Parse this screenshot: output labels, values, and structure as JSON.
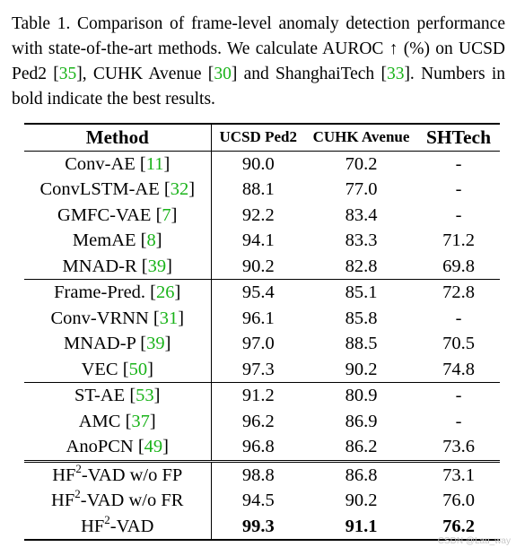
{
  "caption": {
    "prefix": "Table 1. Comparison of frame-level anomaly detection performance with state-of-the-art methods. We calculate AUROC ↑ (%) on UCSD Ped2 [",
    "ref1": "35",
    "mid1": "], CUHK Avenue [",
    "ref2": "30",
    "mid2": "] and ShanghaiTech [",
    "ref3": "33",
    "suffix": "]. Numbers in bold indicate the best results."
  },
  "headers": {
    "method": "Method",
    "ped2": "UCSD Ped2",
    "avenue": "CUHK Avenue",
    "shtech": "SHTech"
  },
  "rows": [
    {
      "name": "Conv-AE [",
      "ref": "11",
      "close": "]",
      "ped2": "90.0",
      "avenue": "70.2",
      "shtech": "-"
    },
    {
      "name": "ConvLSTM-AE [",
      "ref": "32",
      "close": "]",
      "ped2": "88.1",
      "avenue": "77.0",
      "shtech": "-"
    },
    {
      "name": "GMFC-VAE [",
      "ref": "7",
      "close": "]",
      "ped2": "92.2",
      "avenue": "83.4",
      "shtech": "-"
    },
    {
      "name": "MemAE [",
      "ref": "8",
      "close": "]",
      "ped2": "94.1",
      "avenue": "83.3",
      "shtech": "71.2"
    },
    {
      "name": "MNAD-R [",
      "ref": "39",
      "close": "]",
      "ped2": "90.2",
      "avenue": "82.8",
      "shtech": "69.8"
    },
    {
      "name": "Frame-Pred. [",
      "ref": "26",
      "close": "]",
      "ped2": "95.4",
      "avenue": "85.1",
      "shtech": "72.8"
    },
    {
      "name": "Conv-VRNN [",
      "ref": "31",
      "close": "]",
      "ped2": "96.1",
      "avenue": "85.8",
      "shtech": "-"
    },
    {
      "name": "MNAD-P [",
      "ref": "39",
      "close": "]",
      "ped2": "97.0",
      "avenue": "88.5",
      "shtech": "70.5"
    },
    {
      "name": "VEC [",
      "ref": "50",
      "close": "]",
      "ped2": "97.3",
      "avenue": "90.2",
      "shtech": "74.8"
    },
    {
      "name": "ST-AE [",
      "ref": "53",
      "close": "]",
      "ped2": "91.2",
      "avenue": "80.9",
      "shtech": "-"
    },
    {
      "name": "AMC [",
      "ref": "37",
      "close": "]",
      "ped2": "96.2",
      "avenue": "86.9",
      "shtech": "-"
    },
    {
      "name": "AnoPCN [",
      "ref": "49",
      "close": "]",
      "ped2": "96.8",
      "avenue": "86.2",
      "shtech": "73.6"
    },
    {
      "pre": "HF",
      "sup": "2",
      "post": "-VAD w/o FP",
      "ped2": "98.8",
      "avenue": "86.8",
      "shtech": "73.1"
    },
    {
      "pre": "HF",
      "sup": "2",
      "post": "-VAD w/o FR",
      "ped2": "94.5",
      "avenue": "90.2",
      "shtech": "76.0"
    },
    {
      "pre": "HF",
      "sup": "2",
      "post": "-VAD",
      "ped2": "99.3",
      "avenue": "91.1",
      "shtech": "76.2"
    }
  ],
  "watermark": "CSDN @Lau_way"
}
